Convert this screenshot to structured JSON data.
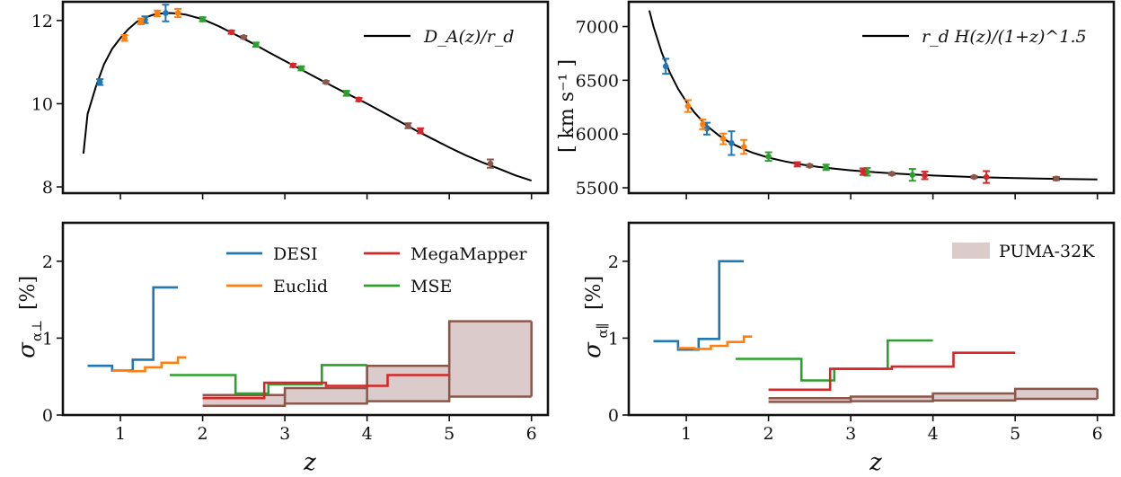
{
  "colors": {
    "DESI": "#1f77b4",
    "Euclid": "#ff7f0e",
    "MegaMapper": "#d62728",
    "MSE": "#2ca02c",
    "PUMA": "#8c564b",
    "PUMA_fill": "#dbcbca",
    "frame": "#111111",
    "theory": "#000000"
  },
  "labels": {
    "xlabel_left": "z",
    "xlabel_right": "z",
    "ylabel_top_right": "[ km s⁻¹ ]",
    "ylabel_bottom_left_sym": "σ",
    "ylabel_bottom_left_sub": "α⊥",
    "ylabel_bottom_left_unit": "[%]",
    "ylabel_bottom_right_sym": "σ",
    "ylabel_bottom_right_sub": "α∥",
    "ylabel_bottom_right_unit": "[%]",
    "legend_top_left": "D_A(z)/r_d",
    "legend_top_right": "r_d H(z)/(1+z)^1.5",
    "legend_DESI": "DESI",
    "legend_Euclid": "Euclid",
    "legend_MegaMapper": "MegaMapper",
    "legend_MSE": "MSE",
    "legend_PUMA": "PUMA-32K"
  },
  "chart_data": [
    {
      "id": "top-left",
      "type": "line",
      "xlim": [
        0.3,
        6.2
      ],
      "ylim": [
        7.85,
        12.45
      ],
      "xticks": [
        1,
        2,
        3,
        4,
        5,
        6
      ],
      "yticks": [
        8,
        10,
        12
      ],
      "theory": {
        "name": "D_A(z)/r_d",
        "x": [
          0.55,
          0.6,
          0.7,
          0.8,
          0.9,
          1.0,
          1.1,
          1.2,
          1.3,
          1.4,
          1.5,
          1.6,
          1.7,
          1.8,
          2.0,
          2.2,
          2.4,
          2.6,
          2.8,
          3.0,
          3.2,
          3.4,
          3.6,
          3.8,
          4.0,
          4.2,
          4.4,
          4.6,
          4.8,
          5.0,
          5.2,
          5.4,
          5.6,
          5.8,
          6.0
        ],
        "y": [
          8.8,
          9.75,
          10.4,
          10.95,
          11.32,
          11.58,
          11.8,
          11.97,
          12.07,
          12.14,
          12.17,
          12.18,
          12.17,
          12.14,
          12.03,
          11.86,
          11.66,
          11.46,
          11.24,
          11.03,
          10.82,
          10.61,
          10.4,
          10.2,
          10.0,
          9.79,
          9.57,
          9.35,
          9.15,
          8.95,
          8.76,
          8.59,
          8.44,
          8.28,
          8.15
        ]
      },
      "points": [
        {
          "s": "DESI",
          "x": 0.75,
          "y": 10.52,
          "e": 0.07
        },
        {
          "s": "DESI",
          "x": 1.3,
          "y": 12.02,
          "e": 0.08
        },
        {
          "s": "DESI",
          "x": 1.55,
          "y": 12.18,
          "e": 0.2
        },
        {
          "s": "Euclid",
          "x": 1.05,
          "y": 11.58,
          "e": 0.07
        },
        {
          "s": "Euclid",
          "x": 1.25,
          "y": 11.98,
          "e": 0.07
        },
        {
          "s": "Euclid",
          "x": 1.45,
          "y": 12.17,
          "e": 0.07
        },
        {
          "s": "Euclid",
          "x": 1.7,
          "y": 12.18,
          "e": 0.1
        },
        {
          "s": "MSE",
          "x": 2.0,
          "y": 12.03,
          "e": 0.05
        },
        {
          "s": "MSE",
          "x": 2.65,
          "y": 11.42,
          "e": 0.05
        },
        {
          "s": "MSE",
          "x": 3.2,
          "y": 10.85,
          "e": 0.05
        },
        {
          "s": "MSE",
          "x": 3.75,
          "y": 10.25,
          "e": 0.06
        },
        {
          "s": "MegaMapper",
          "x": 2.35,
          "y": 11.72,
          "e": 0.04
        },
        {
          "s": "MegaMapper",
          "x": 3.1,
          "y": 10.92,
          "e": 0.04
        },
        {
          "s": "MegaMapper",
          "x": 3.9,
          "y": 10.1,
          "e": 0.04
        },
        {
          "s": "MegaMapper",
          "x": 4.65,
          "y": 9.35,
          "e": 0.06
        },
        {
          "s": "PUMA",
          "x": 2.5,
          "y": 11.6,
          "e": 0.03
        },
        {
          "s": "PUMA",
          "x": 3.5,
          "y": 10.52,
          "e": 0.03
        },
        {
          "s": "PUMA",
          "x": 4.5,
          "y": 9.47,
          "e": 0.06
        },
        {
          "s": "PUMA",
          "x": 5.5,
          "y": 8.56,
          "e": 0.1
        }
      ]
    },
    {
      "id": "top-right",
      "type": "line",
      "xlim": [
        0.3,
        6.2
      ],
      "ylim": [
        5450,
        7230
      ],
      "xticks": [
        1,
        2,
        3,
        4,
        5,
        6
      ],
      "yticks": [
        5500,
        6000,
        6500,
        7000
      ],
      "theory": {
        "name": "r_d H(z)/(1+z)^1.5",
        "x": [
          0.55,
          0.6,
          0.7,
          0.8,
          0.9,
          1.0,
          1.1,
          1.2,
          1.3,
          1.4,
          1.5,
          1.6,
          1.7,
          1.8,
          2.0,
          2.2,
          2.4,
          2.6,
          2.8,
          3.0,
          3.3,
          3.6,
          4.0,
          4.5,
          5.0,
          5.5,
          6.0
        ],
        "y": [
          7150,
          7000,
          6760,
          6570,
          6420,
          6300,
          6200,
          6115,
          6045,
          5985,
          5935,
          5895,
          5860,
          5828,
          5780,
          5745,
          5717,
          5695,
          5677,
          5662,
          5645,
          5630,
          5614,
          5600,
          5590,
          5583,
          5578
        ]
      },
      "points": [
        {
          "s": "DESI",
          "x": 0.75,
          "y": 6630,
          "e": 70
        },
        {
          "s": "DESI",
          "x": 1.25,
          "y": 6050,
          "e": 55
        },
        {
          "s": "DESI",
          "x": 1.55,
          "y": 5915,
          "e": 110
        },
        {
          "s": "Euclid",
          "x": 1.02,
          "y": 6260,
          "e": 55
        },
        {
          "s": "Euclid",
          "x": 1.2,
          "y": 6090,
          "e": 45
        },
        {
          "s": "Euclid",
          "x": 1.45,
          "y": 5955,
          "e": 50
        },
        {
          "s": "Euclid",
          "x": 1.7,
          "y": 5880,
          "e": 65
        },
        {
          "s": "MSE",
          "x": 2.0,
          "y": 5790,
          "e": 40
        },
        {
          "s": "MSE",
          "x": 2.7,
          "y": 5690,
          "e": 25
        },
        {
          "s": "MSE",
          "x": 3.2,
          "y": 5648,
          "e": 35
        },
        {
          "s": "MSE",
          "x": 3.75,
          "y": 5620,
          "e": 55
        },
        {
          "s": "MegaMapper",
          "x": 2.35,
          "y": 5718,
          "e": 20
        },
        {
          "s": "MegaMapper",
          "x": 3.15,
          "y": 5650,
          "e": 30
        },
        {
          "s": "MegaMapper",
          "x": 3.9,
          "y": 5615,
          "e": 35
        },
        {
          "s": "MegaMapper",
          "x": 4.65,
          "y": 5600,
          "e": 55
        },
        {
          "s": "PUMA",
          "x": 2.5,
          "y": 5705,
          "e": 10
        },
        {
          "s": "PUMA",
          "x": 3.5,
          "y": 5630,
          "e": 10
        },
        {
          "s": "PUMA",
          "x": 4.5,
          "y": 5600,
          "e": 10
        },
        {
          "s": "PUMA",
          "x": 5.5,
          "y": 5585,
          "e": 15
        }
      ]
    },
    {
      "id": "bottom-left",
      "type": "line",
      "xlim": [
        0.3,
        6.2
      ],
      "ylim": [
        0,
        2.5
      ],
      "xticks": [
        1,
        2,
        3,
        4,
        5,
        6
      ],
      "yticks": [
        0,
        1,
        2
      ],
      "steps": [
        {
          "s": "DESI",
          "x": [
            0.6,
            0.9,
            0.9,
            1.15,
            1.15,
            1.4,
            1.4,
            1.7
          ],
          "y": [
            0.64,
            0.64,
            0.58,
            0.58,
            0.72,
            0.72,
            1.66,
            1.66
          ]
        },
        {
          "s": "Euclid",
          "x": [
            0.9,
            1.1,
            1.1,
            1.3,
            1.3,
            1.5,
            1.5,
            1.7,
            1.7,
            1.8
          ],
          "y": [
            0.58,
            0.58,
            0.57,
            0.57,
            0.62,
            0.62,
            0.68,
            0.68,
            0.75,
            0.75
          ]
        },
        {
          "s": "MSE",
          "x": [
            1.6,
            2.4,
            2.4,
            2.8,
            2.8,
            3.45,
            3.45,
            4.0
          ],
          "y": [
            0.52,
            0.52,
            0.28,
            0.28,
            0.4,
            0.4,
            0.65,
            0.65
          ]
        },
        {
          "s": "MegaMapper",
          "x": [
            2.0,
            2.75,
            2.75,
            3.5,
            3.5,
            4.25,
            4.25,
            5.0
          ],
          "y": [
            0.22,
            0.22,
            0.42,
            0.42,
            0.38,
            0.38,
            0.52,
            0.52
          ]
        }
      ],
      "band": {
        "s": "PUMA",
        "x": [
          2,
          3,
          4,
          5,
          6
        ],
        "lower": [
          0.12,
          0.15,
          0.18,
          0.24,
          0.24
        ],
        "upper": [
          0.26,
          0.35,
          0.64,
          1.22,
          1.22
        ]
      }
    },
    {
      "id": "bottom-right",
      "type": "line",
      "xlim": [
        0.3,
        6.2
      ],
      "ylim": [
        0,
        2.5
      ],
      "xticks": [
        1,
        2,
        3,
        4,
        5,
        6
      ],
      "yticks": [
        0,
        1,
        2
      ],
      "steps": [
        {
          "s": "DESI",
          "x": [
            0.6,
            0.9,
            0.9,
            1.15,
            1.15,
            1.4,
            1.4,
            1.7
          ],
          "y": [
            0.96,
            0.96,
            0.85,
            0.85,
            0.99,
            0.99,
            2.0,
            2.0
          ]
        },
        {
          "s": "Euclid",
          "x": [
            0.9,
            1.1,
            1.1,
            1.3,
            1.3,
            1.5,
            1.5,
            1.7,
            1.7,
            1.8
          ],
          "y": [
            0.87,
            0.87,
            0.86,
            0.86,
            0.9,
            0.9,
            0.95,
            0.95,
            1.02,
            1.02
          ]
        },
        {
          "s": "MSE",
          "x": [
            1.6,
            2.4,
            2.4,
            2.8,
            2.8,
            3.45,
            3.45,
            4.0
          ],
          "y": [
            0.73,
            0.73,
            0.45,
            0.45,
            0.6,
            0.6,
            0.97,
            0.97
          ]
        },
        {
          "s": "MegaMapper",
          "x": [
            2.0,
            2.75,
            2.75,
            3.5,
            3.5,
            4.25,
            4.25,
            5.0
          ],
          "y": [
            0.33,
            0.33,
            0.6,
            0.6,
            0.63,
            0.63,
            0.81,
            0.81
          ]
        }
      ],
      "band": {
        "s": "PUMA",
        "x": [
          2,
          3,
          4,
          5,
          6
        ],
        "lower": [
          0.17,
          0.18,
          0.19,
          0.21,
          0.22
        ],
        "upper": [
          0.22,
          0.24,
          0.28,
          0.34,
          0.34
        ]
      }
    }
  ]
}
